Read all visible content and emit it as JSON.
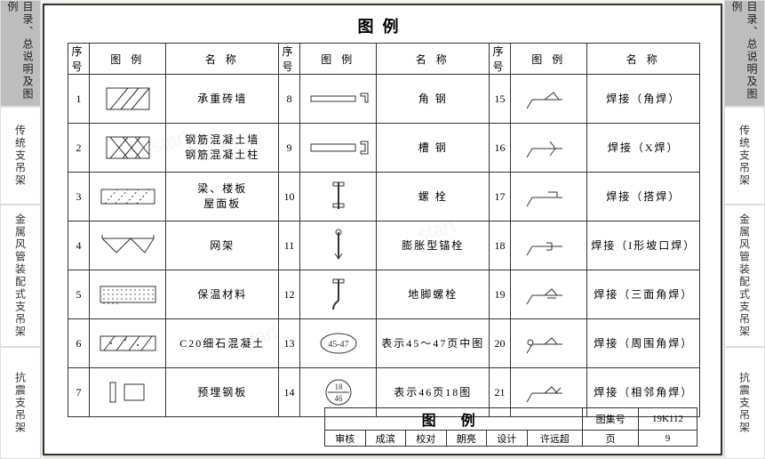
{
  "sideTabs": [
    {
      "label": "目录、总说明及图例",
      "active": true
    },
    {
      "label": "传统支吊架",
      "active": false
    },
    {
      "label": "金属风管装配式支吊架",
      "active": false
    },
    {
      "label": "抗震支吊架",
      "active": false
    }
  ],
  "page": {
    "title": "图例",
    "headers": {
      "seq": "序号",
      "symbol": "图 例",
      "name": "名 称"
    },
    "rows": [
      {
        "n": "1",
        "name": "承重砖墙",
        "sym": "hatch45"
      },
      {
        "n": "2",
        "name": "钢筋混凝土墙\n钢筋混凝土柱",
        "sym": "hatchX"
      },
      {
        "n": "3",
        "name": "梁、楼板\n屋面板",
        "sym": "hatchLight"
      },
      {
        "n": "4",
        "name": "网架",
        "sym": "truss"
      },
      {
        "n": "5",
        "name": "保温材料",
        "sym": "dots"
      },
      {
        "n": "6",
        "name": "C20细石混凝土",
        "sym": "hatchConcrete"
      },
      {
        "n": "7",
        "name": "预埋钢板",
        "sym": "plate"
      },
      {
        "n": "8",
        "name": "角 钢",
        "sym": "angleSteel"
      },
      {
        "n": "9",
        "name": "槽 钢",
        "sym": "channelSteel"
      },
      {
        "n": "10",
        "name": "螺 栓",
        "sym": "bolt"
      },
      {
        "n": "11",
        "name": "膨胀型锚栓",
        "sym": "anchor"
      },
      {
        "n": "12",
        "name": "地脚螺栓",
        "sym": "footBolt"
      },
      {
        "n": "13",
        "name": "表示45～47页中图",
        "sym": "pageRange",
        "txt": "45-47"
      },
      {
        "n": "14",
        "name": "表示46页18图",
        "sym": "pageFrac",
        "txt": "18",
        "txt2": "46"
      },
      {
        "n": "15",
        "name": "焊接（角焊）",
        "sym": "weld1"
      },
      {
        "n": "16",
        "name": "焊接（X焊）",
        "sym": "weld2"
      },
      {
        "n": "17",
        "name": "焊接（搭焊）",
        "sym": "weld3"
      },
      {
        "n": "18",
        "name": "焊接（I形坡口焊）",
        "sym": "weld4"
      },
      {
        "n": "19",
        "name": "焊接（三面角焊）",
        "sym": "weld5"
      },
      {
        "n": "20",
        "name": "焊接（周围角焊）",
        "sym": "weld6"
      },
      {
        "n": "21",
        "name": "焊接（相邻角焊）",
        "sym": "weld7"
      }
    ]
  },
  "footer": {
    "title": "图 例",
    "setLabel": "图集号",
    "setNo": "19K112",
    "pageLabel": "页",
    "pageNo": "9",
    "cells": [
      {
        "k": "审核",
        "v": "成滨"
      },
      {
        "k": "校对",
        "v": "朗亮"
      },
      {
        "k": "设计",
        "v": "许远超"
      }
    ]
  },
  "style": {
    "stroke": "#333",
    "fill": "#fff",
    "accent": "#bdbdbd",
    "pageBorder": "#333",
    "bg": "#f5f5f0"
  }
}
